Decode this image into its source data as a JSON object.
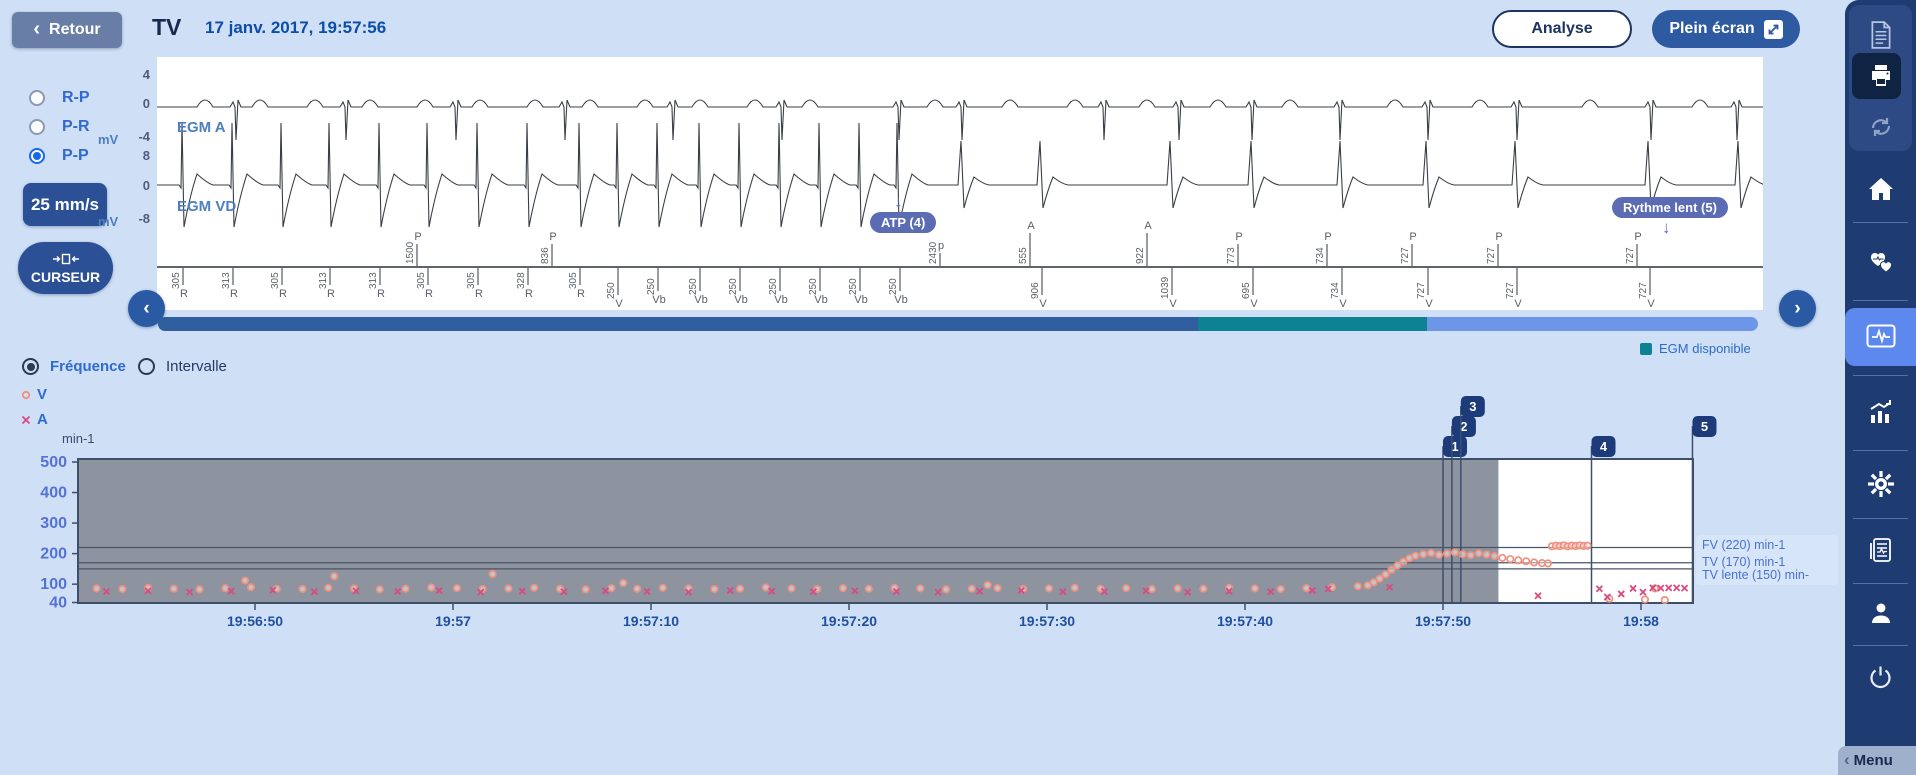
{
  "topbar": {
    "retour_label": "Retour",
    "title": "TV",
    "datetime": "17 janv. 2017, 19:57:56",
    "analyse_label": "Analyse",
    "fullscreen_label": "Plein écran"
  },
  "controls": {
    "modes": [
      {
        "label": "R-P",
        "selected": false
      },
      {
        "label": "P-R",
        "selected": false
      },
      {
        "label": "P-P",
        "selected": true
      }
    ],
    "speed_label": "25 mm/s",
    "cursor_label": "CURSEUR"
  },
  "egm": {
    "a_label": "EGM A",
    "vd_label": "EGM VD",
    "axis": {
      "unit": "mV",
      "a": [
        "4",
        "0",
        "-4"
      ],
      "vd": [
        "8",
        "0",
        "-8"
      ]
    },
    "badges": {
      "atp": "ATP (4)",
      "slow": "Rythme lent (5)",
      "arrow": "↓"
    },
    "markers_below": [
      [
        183,
        "305",
        "R"
      ],
      [
        233,
        "313",
        "R"
      ],
      [
        282,
        "305",
        "R"
      ],
      [
        330,
        "313",
        "R"
      ],
      [
        380,
        "313",
        "R"
      ],
      [
        428,
        "305",
        "R"
      ],
      [
        478,
        "305",
        "R"
      ],
      [
        528,
        "328",
        "R"
      ],
      [
        580,
        "305",
        "R"
      ],
      [
        618,
        "250",
        "V"
      ],
      [
        658,
        "250",
        "Vb"
      ],
      [
        700,
        "250",
        "Vb"
      ],
      [
        740,
        "250",
        "Vb"
      ],
      [
        780,
        "250",
        "Vb"
      ],
      [
        820,
        "250",
        "Vb"
      ],
      [
        860,
        "250",
        "Vb"
      ],
      [
        900,
        "250",
        "Vb"
      ],
      [
        1042,
        "906",
        "V"
      ],
      [
        1172,
        "1039",
        "V"
      ],
      [
        1253,
        "695",
        "V"
      ],
      [
        1342,
        "734",
        "V"
      ],
      [
        1428,
        "727",
        "V"
      ],
      [
        1517,
        "727",
        "V"
      ],
      [
        1650,
        "727",
        "V"
      ]
    ],
    "markers_above": [
      [
        417,
        "1500",
        "P"
      ],
      [
        552,
        "836",
        "P"
      ],
      [
        940,
        "2430",
        "p"
      ],
      [
        1030,
        "555",
        "A"
      ],
      [
        1147,
        "922",
        "A"
      ],
      [
        1238,
        "773",
        "P"
      ],
      [
        1327,
        "734",
        "P"
      ],
      [
        1412,
        "727",
        "P"
      ],
      [
        1498,
        "727",
        "P"
      ],
      [
        1637,
        "727",
        "P"
      ]
    ],
    "a_spikes": [
      237,
      347,
      457,
      566,
      674,
      783,
      900,
      963,
      1105,
      1180,
      1253,
      1341,
      1429,
      1518,
      1652,
      1738
    ],
    "a_bumps": [
      205,
      260,
      315,
      370,
      425,
      480,
      535,
      590,
      645,
      700,
      755,
      810,
      935,
      1010,
      1075,
      1147,
      1218,
      1290,
      1395,
      1480,
      1590,
      1700
    ],
    "vd_tachy": [
      183,
      233,
      282,
      330,
      380,
      428,
      478,
      528,
      580,
      618,
      658,
      700,
      740,
      780,
      820,
      860,
      898
    ],
    "vd_slow": [
      963,
      1042,
      1172,
      1253,
      1342,
      1428,
      1517,
      1650,
      1740
    ]
  },
  "scrollbar": {
    "segments": [
      {
        "color": "#2e5e9d",
        "frac": 0.65
      },
      {
        "color": "#0d8292",
        "frac": 0.143
      },
      {
        "color": "#6d96e8",
        "frac": 0.207
      }
    ]
  },
  "egm_available_legend": {
    "label": "EGM disponible",
    "color": "#0d8292"
  },
  "chart_controls": {
    "mode_frequency": "Fréquence",
    "mode_interval": "Intervalle",
    "legend_v": "V",
    "legend_a": "A",
    "unit": "min-1"
  },
  "chart_data": {
    "type": "scatter",
    "title": "",
    "xlabel": "",
    "ylabel": "min-1",
    "ylim": [
      40,
      500
    ],
    "yticks": [
      500,
      400,
      300,
      200,
      100,
      40
    ],
    "grid": false,
    "legend_position": "top-left",
    "xticks": [
      {
        "t": 10,
        "label": "19:56:50"
      },
      {
        "t": 20,
        "label": "19:57"
      },
      {
        "t": 30,
        "label": "19:57:10"
      },
      {
        "t": 40,
        "label": "19:57:20"
      },
      {
        "t": 50,
        "label": "19:57:30"
      },
      {
        "t": 60,
        "label": "19:57:40"
      },
      {
        "t": 70,
        "label": "19:57:50"
      },
      {
        "t": 80,
        "label": "19:58"
      }
    ],
    "thresholds": [
      {
        "label": "FV (220) min-1",
        "value": 220
      },
      {
        "label": "TV (170) min-1",
        "value": 170
      },
      {
        "label": "TV lente (150) min-",
        "value": 150
      }
    ],
    "episodes": {
      "window": [
        72.8,
        82.6
      ],
      "flags": [
        {
          "n": "1",
          "t": 70.0,
          "row": 2
        },
        {
          "n": "2",
          "t": 70.45,
          "row": 1
        },
        {
          "n": "3",
          "t": 70.9,
          "row": 0
        },
        {
          "n": "4",
          "t": 77.5,
          "row": 2
        },
        {
          "n": "5",
          "t": 82.6,
          "row": 1
        }
      ]
    },
    "series": [
      {
        "name": "V",
        "marker": "circle",
        "color": "#f0907e",
        "points": [
          [
            2,
            86
          ],
          [
            3.3,
            84
          ],
          [
            4.6,
            88
          ],
          [
            5.9,
            85
          ],
          [
            7.2,
            83
          ],
          [
            8.5,
            87
          ],
          [
            9.8,
            90
          ],
          [
            11.1,
            85
          ],
          [
            12.4,
            84
          ],
          [
            13.7,
            88
          ],
          [
            15,
            86
          ],
          [
            16.3,
            83
          ],
          [
            17.6,
            85
          ],
          [
            18.9,
            89
          ],
          [
            20.2,
            87
          ],
          [
            21.5,
            84
          ],
          [
            22.8,
            86
          ],
          [
            24.1,
            88
          ],
          [
            25.4,
            85
          ],
          [
            26.7,
            83
          ],
          [
            28,
            87
          ],
          [
            29.3,
            85
          ],
          [
            30.6,
            88
          ],
          [
            31.9,
            86
          ],
          [
            33.2,
            84
          ],
          [
            34.5,
            85
          ],
          [
            35.8,
            89
          ],
          [
            37.1,
            86
          ],
          [
            38.4,
            84
          ],
          [
            39.7,
            87
          ],
          [
            41,
            85
          ],
          [
            42.3,
            88
          ],
          [
            43.6,
            86
          ],
          [
            44.9,
            83
          ],
          [
            46.2,
            85
          ],
          [
            47.5,
            87
          ],
          [
            48.8,
            84
          ],
          [
            50.1,
            86
          ],
          [
            51.4,
            88
          ],
          [
            52.7,
            85
          ],
          [
            54,
            87
          ],
          [
            55.3,
            84
          ],
          [
            56.6,
            86
          ],
          [
            57.9,
            85
          ],
          [
            59.2,
            88
          ],
          [
            60.5,
            86
          ],
          [
            61.8,
            84
          ],
          [
            63.1,
            87
          ],
          [
            64.4,
            90
          ],
          [
            65.7,
            93
          ],
          [
            9.5,
            112
          ],
          [
            14,
            126
          ],
          [
            22,
            133
          ],
          [
            28.6,
            104
          ],
          [
            47,
            97
          ],
          [
            66.2,
            96
          ],
          [
            66.5,
            106
          ],
          [
            66.8,
            118
          ],
          [
            67.1,
            132
          ],
          [
            67.4,
            147
          ],
          [
            67.7,
            161
          ],
          [
            68,
            174
          ],
          [
            68.3,
            185
          ],
          [
            68.6,
            193
          ],
          [
            69,
            198
          ],
          [
            69.4,
            202
          ],
          [
            69.8,
            196
          ],
          [
            70.2,
            200
          ],
          [
            70.6,
            204
          ],
          [
            71,
            198
          ],
          [
            71.4,
            195
          ],
          [
            71.8,
            201
          ],
          [
            72.2,
            197
          ],
          [
            72.6,
            192
          ],
          [
            73,
            186
          ],
          [
            73.4,
            182
          ],
          [
            73.8,
            178
          ],
          [
            74.2,
            175
          ],
          [
            74.6,
            171
          ],
          [
            75,
            169
          ],
          [
            75.3,
            168
          ],
          [
            75.5,
            224
          ],
          [
            75.7,
            226
          ],
          [
            75.9,
            225
          ],
          [
            76.1,
            227
          ],
          [
            76.3,
            224
          ],
          [
            76.5,
            226
          ],
          [
            76.7,
            225
          ],
          [
            76.9,
            227
          ],
          [
            77.1,
            225
          ],
          [
            77.3,
            226
          ],
          [
            78.4,
            52
          ],
          [
            80.2,
            50
          ],
          [
            80.7,
            86
          ],
          [
            81.2,
            48
          ]
        ]
      },
      {
        "name": "A",
        "marker": "x",
        "color": "#d84b82",
        "points": [
          [
            2.5,
            76
          ],
          [
            4.6,
            78
          ],
          [
            6.7,
            74
          ],
          [
            8.8,
            77
          ],
          [
            10.9,
            80
          ],
          [
            13,
            75
          ],
          [
            15.1,
            78
          ],
          [
            17.2,
            76
          ],
          [
            19.3,
            79
          ],
          [
            21.4,
            74
          ],
          [
            23.5,
            77
          ],
          [
            25.6,
            75
          ],
          [
            27.7,
            78
          ],
          [
            29.8,
            76
          ],
          [
            31.9,
            74
          ],
          [
            34,
            79
          ],
          [
            36.1,
            77
          ],
          [
            38.2,
            75
          ],
          [
            40.3,
            78
          ],
          [
            42.4,
            76
          ],
          [
            44.5,
            74
          ],
          [
            46.6,
            77
          ],
          [
            48.7,
            79
          ],
          [
            50.8,
            75
          ],
          [
            52.9,
            76
          ],
          [
            55,
            78
          ],
          [
            57.1,
            74
          ],
          [
            59.2,
            77
          ],
          [
            61.3,
            75
          ],
          [
            63.4,
            79
          ],
          [
            64.2,
            84
          ],
          [
            67.3,
            90
          ],
          [
            74.8,
            62
          ],
          [
            77.9,
            85
          ],
          [
            78.3,
            58
          ],
          [
            79,
            68
          ],
          [
            79.6,
            86
          ],
          [
            80.1,
            74
          ],
          [
            80.6,
            88
          ],
          [
            81,
            87
          ],
          [
            81.4,
            88
          ],
          [
            81.8,
            88
          ],
          [
            82.2,
            87
          ]
        ]
      }
    ]
  },
  "sidebar": {
    "icons": [
      "report-icon",
      "print-icon",
      "sync-icon",
      "home-icon",
      "leads-icon",
      "egm-icon",
      "stats-icon",
      "settings-icon",
      "episodes-icon",
      "patient-icon",
      "power-icon"
    ],
    "menu_label": "Menu"
  }
}
